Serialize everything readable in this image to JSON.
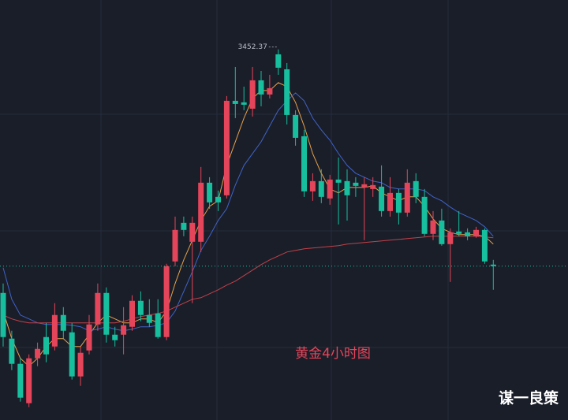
{
  "chart_data": {
    "type": "candlestick",
    "title": "黄金4小时图",
    "watermark": "谋一良策",
    "categories": [
      null,
      null,
      null,
      null,
      null,
      null,
      null,
      null,
      null,
      null,
      null,
      null,
      null,
      null,
      null,
      null,
      null,
      null,
      null,
      null,
      null,
      null,
      null,
      null,
      null,
      null,
      null,
      null,
      null,
      null,
      null,
      null,
      null,
      null,
      null,
      null,
      null,
      null,
      null,
      null,
      null,
      null,
      null,
      null,
      null,
      null,
      null,
      null,
      null,
      null,
      null,
      null,
      null,
      null,
      null,
      null,
      null,
      null
    ],
    "open": [
      3266.8,
      3232,
      3212.8,
      3182.8,
      3217,
      3233.2,
      3226,
      3250,
      3236.8,
      3203.2,
      3223,
      3242.8,
      3266.8,
      3235,
      3235,
      3241,
      3260.8,
      3250,
      3251.2,
      3233.2,
      3290.8,
      3320.2,
      3305.8,
      3305.8,
      3350.8,
      3340,
      3341.2,
      3413.2,
      3412,
      3407.2,
      3428.8,
      3418,
      3448.6,
      3437.2,
      3402.4,
      3386.2,
      3344.2,
      3352,
      3338.8,
      3353.2,
      3352,
      3350.8,
      3347.2,
      3346,
      3347.8,
      3329.2,
      3343,
      3328,
      3352,
      3340,
      3311.8,
      3322,
      3304,
      3313.6,
      3313,
      3310,
      3314.8,
      3288.4
    ],
    "high": [
      3274,
      3238,
      3217,
      3220,
      3229,
      3244,
      3259,
      3256,
      3244,
      3226,
      3250,
      3274,
      3271,
      3241,
      3256,
      3265,
      3268,
      3262,
      3262,
      3289,
      3325,
      3325,
      3325,
      3362.8,
      3355,
      3344.8,
      3416.8,
      3439,
      3424,
      3439,
      3436,
      3433,
      3452.37,
      3442,
      3406,
      3391,
      3358,
      3361,
      3356.8,
      3370,
      3361,
      3355,
      3355,
      3355,
      3364,
      3355,
      3346,
      3361,
      3358,
      3346,
      3329.2,
      3331,
      3316,
      3329.2,
      3316,
      3317.2,
      3316,
      3292
    ],
    "low": [
      3226,
      3208,
      3184,
      3179.8,
      3211,
      3214,
      3223,
      3232,
      3200.8,
      3196,
      3220,
      3238,
      3229,
      3226,
      3220,
      3238,
      3245.2,
      3241,
      3232,
      3230.8,
      3287.2,
      3310,
      3259,
      3298,
      3331,
      3329.2,
      3338.8,
      3400,
      3406,
      3401.2,
      3409,
      3415,
      3433,
      3395.2,
      3379,
      3340,
      3337,
      3335.2,
      3334,
      3319,
      3322,
      3340,
      3307,
      3340,
      3325,
      3325,
      3319,
      3325,
      3335.2,
      3310,
      3307,
      3302.8,
      3275.2,
      3310,
      3307,
      3308.8,
      3289,
      3269.2
    ],
    "close": [
      3233.2,
      3212.8,
      3187,
      3217,
      3224.2,
      3220,
      3250,
      3238,
      3203.2,
      3221.2,
      3242.8,
      3266.8,
      3235,
      3230.8,
      3242.2,
      3260.8,
      3250,
      3244,
      3233.2,
      3287.2,
      3314.8,
      3314.8,
      3320.2,
      3350.8,
      3335.8,
      3335.8,
      3413.2,
      3410.8,
      3410.2,
      3428.8,
      3418,
      3422.8,
      3438.4,
      3402.4,
      3385,
      3344.2,
      3352,
      3340,
      3353.2,
      3350.8,
      3341.2,
      3348.4,
      3349.6,
      3349,
      3329.2,
      3343,
      3328,
      3350.8,
      3340,
      3311.8,
      3322,
      3304,
      3313,
      3311.8,
      3310,
      3314.8,
      3290.8,
      3287.2
    ],
    "up_color": "#e5455a",
    "down_color": "#17bf9f",
    "lines": [
      {
        "color": "#e6a04a",
        "values": [
          3253,
          3232,
          3217,
          3211,
          3217,
          3226,
          3232,
          3232,
          3226,
          3226,
          3235,
          3244,
          3250,
          3247,
          3244,
          3244,
          3247,
          3247,
          3244,
          3253,
          3274,
          3292,
          3307,
          3322,
          3332.8,
          3337,
          3364,
          3382,
          3400,
          3415,
          3421,
          3421,
          3427,
          3424,
          3412,
          3394,
          3373,
          3358,
          3346,
          3343,
          3347.2,
          3347.2,
          3347.2,
          3348.4,
          3343,
          3340,
          3337,
          3340,
          3340,
          3332.8,
          3323.2,
          3316,
          3313,
          3311.2,
          3311.2,
          3311.2,
          3310,
          3304
        ]
      },
      {
        "color": "#3f63c9",
        "values": [
          3286,
          3262,
          3250,
          3247,
          3244,
          3242.8,
          3242.8,
          3242.8,
          3242.2,
          3241,
          3238,
          3239.2,
          3241,
          3239.2,
          3238,
          3239.2,
          3241,
          3241,
          3242.2,
          3244,
          3253,
          3268,
          3283,
          3299.2,
          3310,
          3322,
          3331,
          3349,
          3364,
          3373,
          3382,
          3394,
          3406,
          3413.2,
          3419.2,
          3413.2,
          3400,
          3391,
          3383.2,
          3373,
          3364,
          3358,
          3355,
          3352,
          3350.8,
          3347.2,
          3346,
          3346,
          3346,
          3344.8,
          3340,
          3337,
          3332.2,
          3328,
          3325,
          3322,
          3317.2,
          3310
        ]
      },
      {
        "color": "#c2414a",
        "values": [
          3250,
          3247,
          3245.2,
          3244,
          3244,
          3244,
          3244,
          3244,
          3244,
          3244,
          3244,
          3244,
          3244,
          3244,
          3245.2,
          3247,
          3248.8,
          3250,
          3251.2,
          3253,
          3256,
          3259,
          3262,
          3263.2,
          3266.2,
          3269.2,
          3272.8,
          3275.8,
          3280,
          3284.2,
          3288.4,
          3292,
          3295,
          3298,
          3299.2,
          3300.4,
          3301,
          3301.6,
          3302.2,
          3302.8,
          3304,
          3304.6,
          3305.2,
          3305.8,
          3306.4,
          3307,
          3307.6,
          3308.2,
          3308.8,
          3309.4,
          3310,
          3310,
          3310,
          3310,
          3310,
          3310,
          3309.4,
          3308.8
        ]
      }
    ],
    "ylim": [
      3170,
      3490
    ],
    "grid": true
  }
}
